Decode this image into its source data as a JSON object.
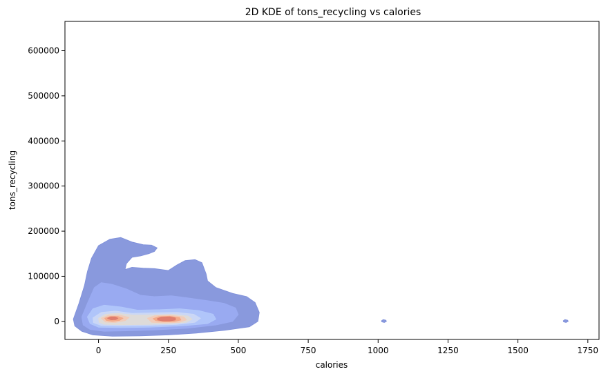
{
  "chart_data": {
    "type": "kde2d",
    "title": "2D KDE of tons_recycling vs calories",
    "xlabel": "calories",
    "ylabel": "tons_recycling",
    "xlim": [
      -120,
      1790
    ],
    "ylim": [
      -40000,
      665000
    ],
    "xticks": [
      0,
      250,
      500,
      750,
      1000,
      1250,
      1500,
      1750
    ],
    "yticks": [
      0,
      100000,
      200000,
      300000,
      400000,
      500000,
      600000
    ],
    "grid": false,
    "colormap": "coolwarm",
    "levels": [
      {
        "level": 1,
        "color": "#7f90da",
        "polygons": [
          [
            [
              -90,
              5000
            ],
            [
              -70,
              40000
            ],
            [
              -50,
              80000
            ],
            [
              -40,
              110000
            ],
            [
              -25,
              140000
            ],
            [
              0,
              168000
            ],
            [
              40,
              182000
            ],
            [
              80,
              186000
            ],
            [
              120,
              176000
            ],
            [
              160,
              170000
            ],
            [
              190,
              169000
            ],
            [
              210,
              163000
            ],
            [
              200,
              155000
            ],
            [
              180,
              150000
            ],
            [
              150,
              145000
            ],
            [
              120,
              142000
            ],
            [
              100,
              128000
            ],
            [
              95,
              115000
            ],
            [
              120,
              120000
            ],
            [
              160,
              118000
            ],
            [
              200,
              117000
            ],
            [
              250,
              113000
            ],
            [
              280,
              125000
            ],
            [
              310,
              135000
            ],
            [
              345,
              137000
            ],
            [
              370,
              130000
            ],
            [
              385,
              105000
            ],
            [
              390,
              90000
            ],
            [
              420,
              75000
            ],
            [
              480,
              62000
            ],
            [
              530,
              55000
            ],
            [
              560,
              42000
            ],
            [
              575,
              20000
            ],
            [
              570,
              0
            ],
            [
              540,
              -12000
            ],
            [
              450,
              -20000
            ],
            [
              350,
              -26000
            ],
            [
              250,
              -30000
            ],
            [
              150,
              -32000
            ],
            [
              50,
              -33000
            ],
            [
              -20,
              -30000
            ],
            [
              -60,
              -22000
            ],
            [
              -85,
              -10000
            ]
          ],
          [
            [
              1012,
              1500
            ],
            [
              1018,
              4000
            ],
            [
              1028,
              2500
            ],
            [
              1030,
              0
            ],
            [
              1022,
              -2500
            ],
            [
              1013,
              -1000
            ]
          ],
          [
            [
              1662,
              1500
            ],
            [
              1668,
              4000
            ],
            [
              1678,
              2500
            ],
            [
              1680,
              0
            ],
            [
              1672,
              -2500
            ],
            [
              1663,
              -1000
            ]
          ]
        ]
      },
      {
        "level": 2,
        "color": "#9aabf2",
        "polygons": [
          [
            [
              -60,
              10000
            ],
            [
              -40,
              40000
            ],
            [
              -15,
              75000
            ],
            [
              10,
              86000
            ],
            [
              50,
              82000
            ],
            [
              100,
              72000
            ],
            [
              150,
              58000
            ],
            [
              200,
              55000
            ],
            [
              260,
              57000
            ],
            [
              320,
              52000
            ],
            [
              390,
              46000
            ],
            [
              450,
              40000
            ],
            [
              490,
              30000
            ],
            [
              500,
              15000
            ],
            [
              480,
              0
            ],
            [
              420,
              -8000
            ],
            [
              320,
              -15000
            ],
            [
              200,
              -19000
            ],
            [
              100,
              -21000
            ],
            [
              20,
              -22000
            ],
            [
              -30,
              -18000
            ],
            [
              -55,
              -8000
            ]
          ]
        ]
      },
      {
        "level": 3,
        "color": "#b2c8fb",
        "polygons": [
          [
            [
              -40,
              10000
            ],
            [
              -20,
              28000
            ],
            [
              20,
              36000
            ],
            [
              80,
              32000
            ],
            [
              140,
              25000
            ],
            [
              220,
              26000
            ],
            [
              290,
              28000
            ],
            [
              360,
              24000
            ],
            [
              410,
              16000
            ],
            [
              420,
              5000
            ],
            [
              390,
              -5000
            ],
            [
              300,
              -10000
            ],
            [
              180,
              -13000
            ],
            [
              80,
              -14000
            ],
            [
              0,
              -13000
            ],
            [
              -30,
              -5000
            ]
          ]
        ]
      },
      {
        "level": 4,
        "color": "#ccd8f5",
        "polygons": [
          [
            [
              -20,
              8000
            ],
            [
              10,
              20000
            ],
            [
              60,
              23000
            ],
            [
              120,
              18000
            ],
            [
              200,
              19000
            ],
            [
              280,
              20000
            ],
            [
              340,
              16000
            ],
            [
              365,
              7000
            ],
            [
              345,
              -2000
            ],
            [
              280,
              -7000
            ],
            [
              180,
              -9000
            ],
            [
              80,
              -10000
            ],
            [
              10,
              -9000
            ],
            [
              -18,
              -3000
            ]
          ]
        ]
      },
      {
        "level": 5,
        "color": "#dfdbd6",
        "polygons": [
          [
            [
              0,
              7000
            ],
            [
              25,
              16000
            ],
            [
              70,
              18000
            ],
            [
              125,
              14000
            ],
            [
              195,
              14500
            ],
            [
              270,
              15500
            ],
            [
              320,
              12000
            ],
            [
              335,
              5000
            ],
            [
              315,
              -2000
            ],
            [
              260,
              -5000
            ],
            [
              170,
              -7000
            ],
            [
              80,
              -7500
            ],
            [
              20,
              -6500
            ],
            [
              2,
              -2000
            ]
          ]
        ]
      },
      {
        "level": 6,
        "color": "#f2cbb7",
        "polygons": [
          [
            [
              10,
              7000
            ],
            [
              35,
              13500
            ],
            [
              75,
              14000
            ],
            [
              110,
              9000
            ],
            [
              95,
              1500
            ],
            [
              60,
              -2500
            ],
            [
              25,
              -1500
            ]
          ],
          [
            [
              175,
              7000
            ],
            [
              200,
              12500
            ],
            [
              255,
              14000
            ],
            [
              305,
              10000
            ],
            [
              315,
              3500
            ],
            [
              290,
              -2000
            ],
            [
              240,
              -3500
            ],
            [
              190,
              -2000
            ]
          ]
        ]
      },
      {
        "level": 7,
        "color": "#f4a886",
        "polygons": [
          [
            [
              22,
              7000
            ],
            [
              40,
              11000
            ],
            [
              70,
              11000
            ],
            [
              88,
              7000
            ],
            [
              75,
              2000
            ],
            [
              50,
              0
            ],
            [
              28,
              2000
            ]
          ],
          [
            [
              195,
              6000
            ],
            [
              215,
              10500
            ],
            [
              255,
              11500
            ],
            [
              290,
              8500
            ],
            [
              295,
              3000
            ],
            [
              270,
              -500
            ],
            [
              235,
              -1000
            ],
            [
              205,
              1500
            ]
          ]
        ]
      },
      {
        "level": 8,
        "color": "#dd7a6c",
        "polygons": [
          [
            [
              32,
              7000
            ],
            [
              45,
              10000
            ],
            [
              60,
              10000
            ],
            [
              70,
              7000
            ],
            [
              62,
              4000
            ],
            [
              45,
              3500
            ]
          ],
          [
            [
              210,
              6000
            ],
            [
              225,
              9500
            ],
            [
              255,
              10000
            ],
            [
              275,
              7500
            ],
            [
              275,
              3000
            ],
            [
              255,
              1000
            ],
            [
              230,
              1000
            ],
            [
              212,
              3000
            ]
          ]
        ]
      }
    ]
  }
}
